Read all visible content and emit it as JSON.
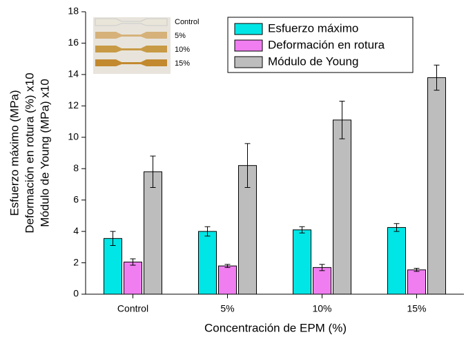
{
  "chart_data": {
    "type": "bar",
    "x_label": "Concentración de EPM (%)",
    "y_label": [
      "Esfuerzo máximo (MPa)",
      "Deformación en rotura (%) x10",
      "Módulo de Young (MPa) x10"
    ],
    "categories": [
      "Control",
      "5%",
      "10%",
      "15%"
    ],
    "series": [
      {
        "name": "Esfuerzo máximo",
        "color": "#00e5e5",
        "values": [
          3.55,
          4.0,
          4.1,
          4.25
        ],
        "errors": [
          0.45,
          0.3,
          0.2,
          0.25
        ]
      },
      {
        "name": "Deformación en rotura",
        "color": "#f07ef0",
        "values": [
          2.05,
          1.8,
          1.7,
          1.55
        ],
        "errors": [
          0.2,
          0.1,
          0.2,
          0.1
        ]
      },
      {
        "name": "Módulo de Young",
        "color": "#bdbdbd",
        "values": [
          7.8,
          8.2,
          11.1,
          13.8
        ],
        "errors": [
          1.0,
          1.4,
          1.2,
          0.8
        ]
      }
    ],
    "ylim": [
      0,
      18
    ],
    "yticks": [
      0,
      2,
      4,
      6,
      8,
      10,
      12,
      14,
      16,
      18
    ],
    "inset_labels": [
      "Control",
      "5%",
      "10%",
      "15%"
    ]
  }
}
